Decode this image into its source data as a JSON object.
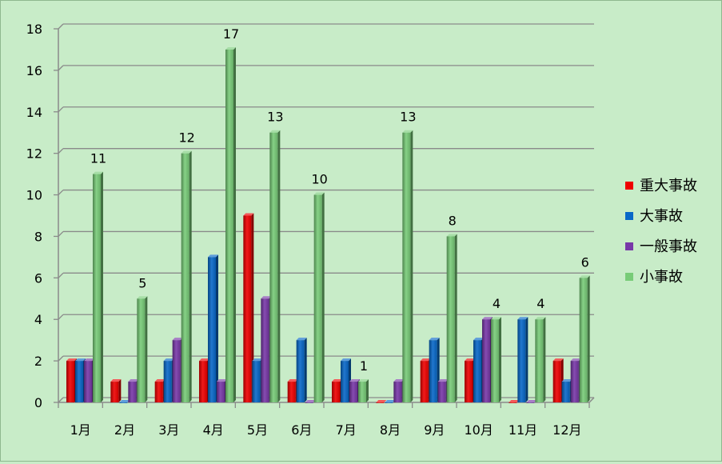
{
  "chart_data": {
    "type": "bar",
    "title": "",
    "xlabel": "",
    "ylabel": "",
    "ylim": [
      0,
      18
    ],
    "yticks": [
      0,
      2,
      4,
      6,
      8,
      10,
      12,
      14,
      16,
      18
    ],
    "grid": true,
    "legend": "right",
    "categories": [
      "1月",
      "2月",
      "3月",
      "4月",
      "5月",
      "6月",
      "7月",
      "8月",
      "9月",
      "10月",
      "11月",
      "12月"
    ],
    "series": [
      {
        "name": "重大事故",
        "color": "#ee0000",
        "values": [
          2,
          1,
          1,
          2,
          9,
          1,
          1,
          0,
          2,
          2,
          0,
          2
        ]
      },
      {
        "name": "大事故",
        "color": "#0868c8",
        "values": [
          2,
          0,
          2,
          7,
          2,
          3,
          2,
          0,
          3,
          3,
          4,
          1
        ]
      },
      {
        "name": "一般事故",
        "color": "#7838a8",
        "values": [
          2,
          1,
          3,
          1,
          5,
          0,
          1,
          1,
          1,
          4,
          0,
          2
        ]
      },
      {
        "name": "小事故",
        "color": "#78cc78",
        "values": [
          11,
          5,
          12,
          17,
          13,
          10,
          1,
          13,
          8,
          4,
          4,
          6
        ],
        "data_labels": true
      }
    ]
  }
}
